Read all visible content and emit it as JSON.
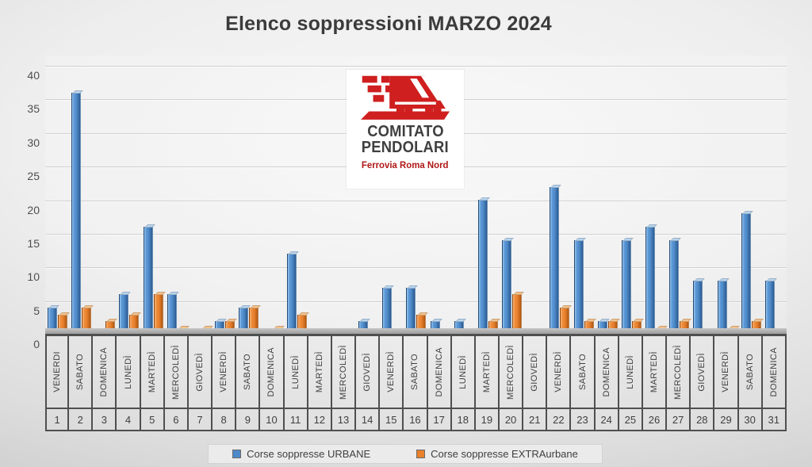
{
  "title": "Elenco soppressioni MARZO 2024",
  "logo": {
    "line1": "COMITATO",
    "line2": "PENDOLARI",
    "line3": "Ferrovia Roma Nord",
    "accent_red": "#cf1f1f"
  },
  "chart_data": {
    "type": "bar",
    "title": "Elenco soppressioni MARZO 2024",
    "categories": [
      1,
      2,
      3,
      4,
      5,
      6,
      7,
      8,
      9,
      10,
      11,
      12,
      13,
      14,
      15,
      16,
      17,
      18,
      19,
      20,
      21,
      22,
      23,
      24,
      25,
      26,
      27,
      28,
      29,
      30,
      31
    ],
    "weekdays": [
      "VENERDI",
      "SABATO",
      "DOMENICA",
      "LUNEDÌ",
      "MARTEDÌ",
      "MERCOLEDÌ",
      "GIOVEDÌ",
      "VENERDÌ",
      "SABATO",
      "DOMENICA",
      "LUNEDÌ",
      "MARTEDÌ",
      "MERCOLEDÌ",
      "GIOVEDÌ",
      "VENERDÌ",
      "SABATO",
      "DOMENICA",
      "LUNEDÌ",
      "MARTEDÌ",
      "MERCOLEDÌ",
      "GIOVEDÌ",
      "VENERDÌ",
      "SABATO",
      "DOMENICA",
      "LUNEDÌ",
      "MARTEDÌ",
      "MERCOLEDÌ",
      "GIOVEDÌ",
      "VENERDÌ",
      "SABATO",
      "DOMENICA"
    ],
    "series": [
      {
        "name": "Corse soppresse URBANE",
        "key": "urbane",
        "color": "#4E8AC8",
        "values": [
          4,
          36,
          null,
          6,
          16,
          6,
          null,
          2,
          4,
          null,
          12,
          0,
          0,
          2,
          7,
          7,
          2,
          2,
          20,
          14,
          0,
          22,
          14,
          2,
          14,
          16,
          14,
          8,
          8,
          18,
          8
        ]
      },
      {
        "name": "Corse soppresse EXTRAurbane",
        "key": "extraurbane",
        "color": "#E8802C",
        "values": [
          3,
          4,
          2,
          3,
          6,
          1,
          1,
          2,
          4,
          1,
          3,
          0,
          0,
          null,
          null,
          3,
          null,
          null,
          2,
          6,
          0,
          4,
          2,
          2,
          2,
          1,
          2,
          null,
          1,
          2,
          null
        ]
      }
    ],
    "yticks": [
      0,
      5,
      10,
      15,
      20,
      25,
      30,
      35,
      40
    ],
    "ylim": [
      0,
      40
    ],
    "grid": true,
    "legend_position": "bottom"
  }
}
